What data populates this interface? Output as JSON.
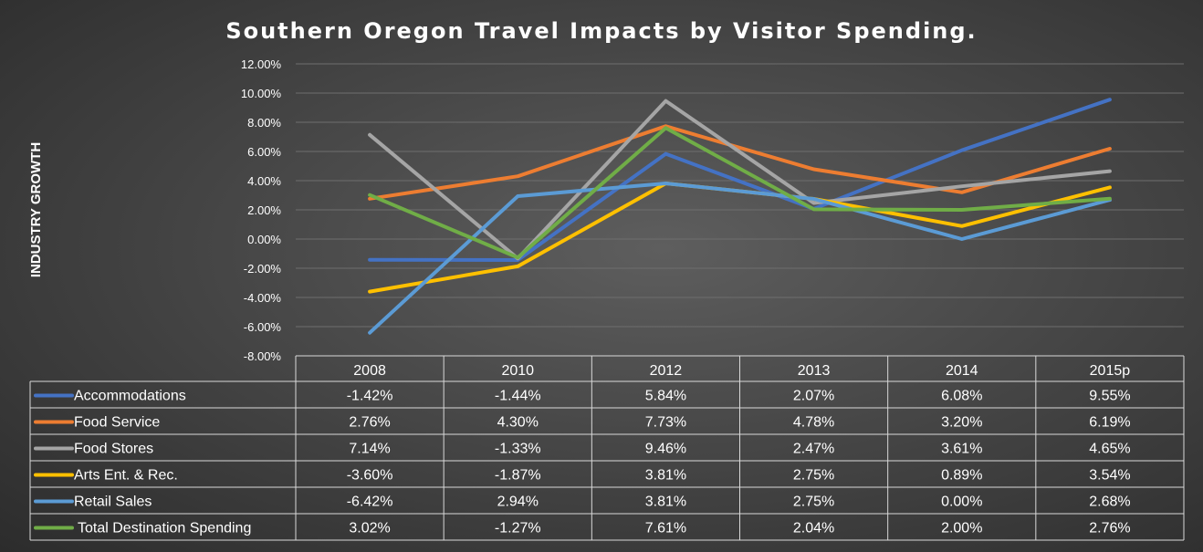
{
  "chart_data": {
    "type": "line",
    "title": "Southern Oregon Travel Impacts by Visitor Spending.",
    "ylabel": "INDUSTRY GROWTH",
    "xlabel": "",
    "ylim": [
      -8,
      12
    ],
    "ytick_step": 2,
    "ytick_labels": [
      "12.00%",
      "10.00%",
      "8.00%",
      "6.00%",
      "4.00%",
      "2.00%",
      "0.00%",
      "-2.00%",
      "-4.00%",
      "-6.00%",
      "-8.00%"
    ],
    "categories": [
      "2008",
      "2010",
      "2012",
      "2013",
      "2014",
      "2015p"
    ],
    "grid": true,
    "legend": "data table below plot",
    "series": [
      {
        "name": "Accommodations",
        "color": "#4472c4",
        "values": [
          -1.42,
          -1.44,
          5.84,
          2.07,
          6.08,
          9.55
        ],
        "labels": [
          "-1.42%",
          "-1.44%",
          "5.84%",
          "2.07%",
          "6.08%",
          "9.55%"
        ]
      },
      {
        "name": "Food Service",
        "color": "#ed7d31",
        "values": [
          2.76,
          4.3,
          7.73,
          4.78,
          3.2,
          6.19
        ],
        "labels": [
          "2.76%",
          "4.30%",
          "7.73%",
          "4.78%",
          "3.20%",
          "6.19%"
        ]
      },
      {
        "name": "Food Stores",
        "color": "#a5a5a5",
        "values": [
          7.14,
          -1.33,
          9.46,
          2.47,
          3.61,
          4.65
        ],
        "labels": [
          "7.14%",
          "-1.33%",
          "9.46%",
          "2.47%",
          "3.61%",
          "4.65%"
        ]
      },
      {
        "name": "Arts Ent. & Rec.",
        "color": "#ffc000",
        "values": [
          -3.6,
          -1.87,
          3.81,
          2.75,
          0.89,
          3.54
        ],
        "labels": [
          "-3.60%",
          "-1.87%",
          "3.81%",
          "2.75%",
          "0.89%",
          "3.54%"
        ]
      },
      {
        "name": "Retail Sales",
        "color": "#5b9bd5",
        "values": [
          -6.42,
          2.94,
          3.81,
          2.75,
          0.0,
          2.68
        ],
        "labels": [
          "-6.42%",
          "2.94%",
          "3.81%",
          "2.75%",
          "0.00%",
          "2.68%"
        ]
      },
      {
        "name": "Total Destination Spending",
        "color": "#70ad47",
        "values": [
          3.02,
          -1.27,
          7.61,
          2.04,
          2.0,
          2.76
        ],
        "labels": [
          "3.02%",
          "-1.27%",
          "7.61%",
          "2.04%",
          "2.00%",
          "2.76%"
        ]
      }
    ]
  }
}
